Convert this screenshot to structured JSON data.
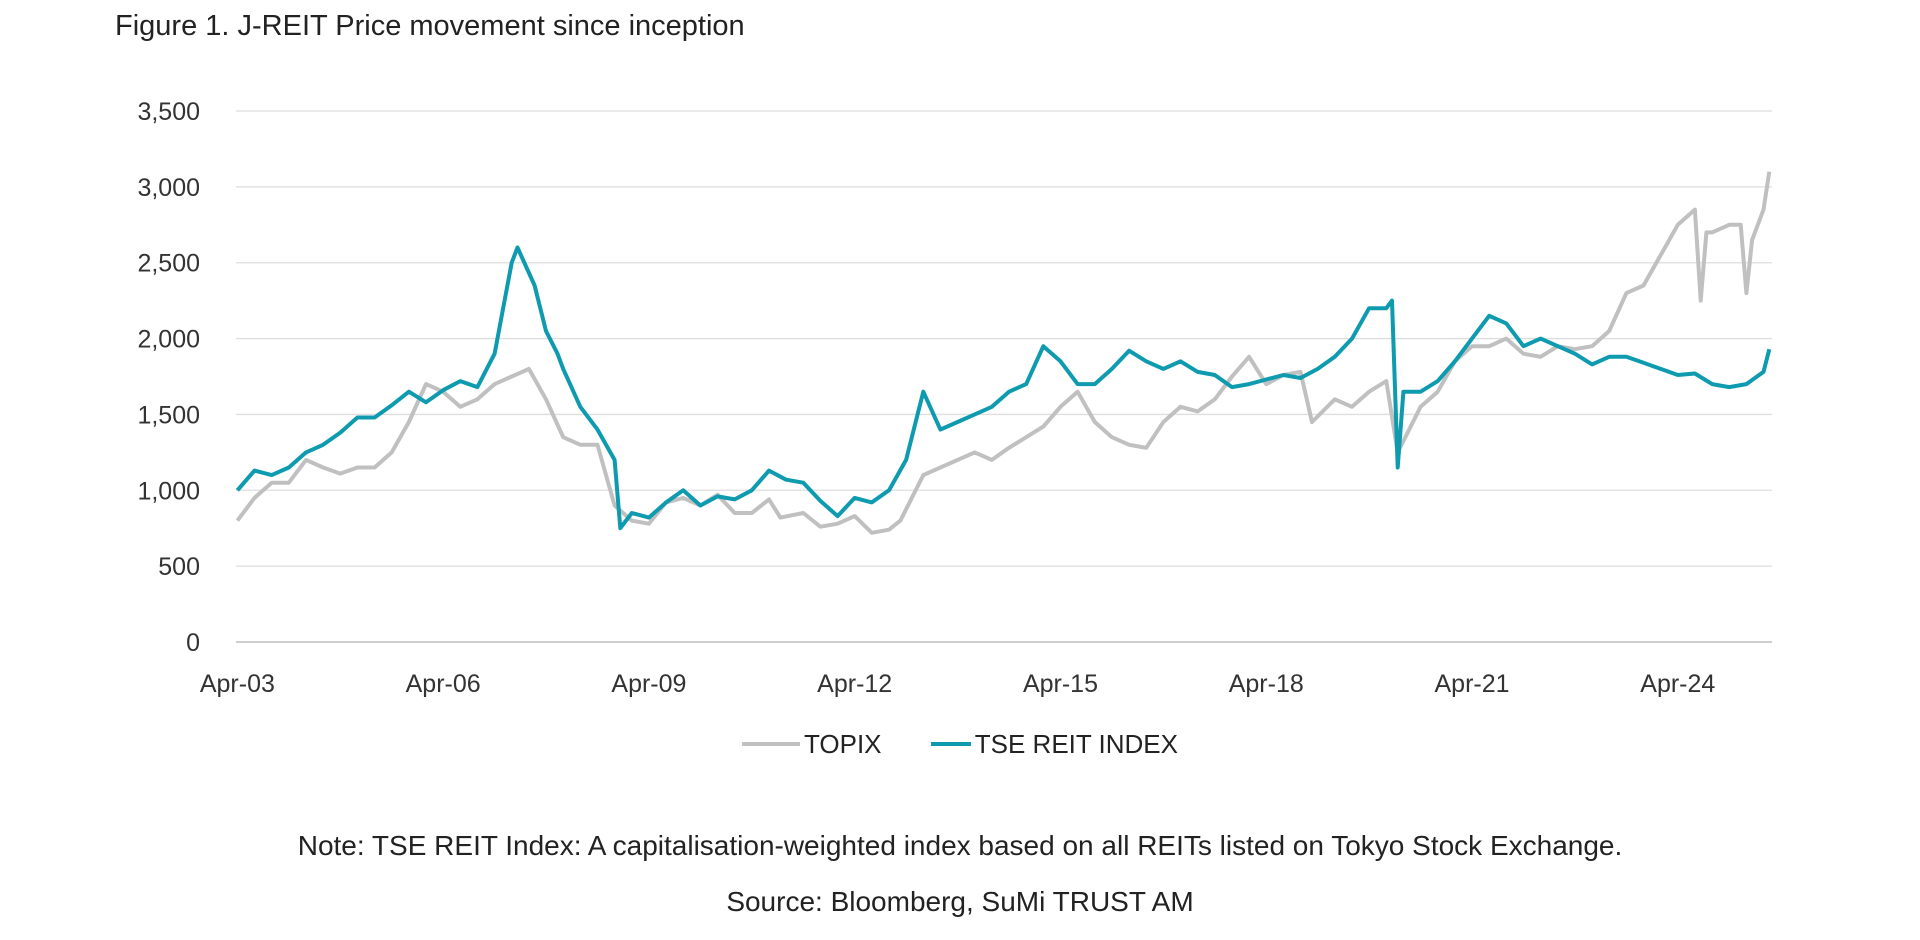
{
  "title": "Figure 1. J-REIT Price movement since inception",
  "note": "Note: TSE REIT Index: A capitalisation-weighted index based on all REITs listed on Tokyo Stock Exchange.",
  "source": "Source: Bloomberg, SuMi TRUST AM",
  "chart_data": {
    "type": "line",
    "title": "Figure 1. J-REIT Price movement since inception",
    "xlabel": "",
    "ylabel": "",
    "ylim": [
      0,
      3500
    ],
    "xlim": [
      "2003-04",
      "2025-08"
    ],
    "yticks": [
      0,
      500,
      1000,
      1500,
      2000,
      2500,
      3000,
      3500
    ],
    "ytick_labels": [
      "0",
      "500",
      "1,000",
      "1,500",
      "2,000",
      "2,500",
      "3,000",
      "3,500"
    ],
    "xticks": [
      "2003-04",
      "2006-04",
      "2009-04",
      "2012-04",
      "2015-04",
      "2018-04",
      "2021-04",
      "2024-04"
    ],
    "xtick_labels": [
      "Apr-03",
      "Apr-06",
      "Apr-09",
      "Apr-12",
      "Apr-15",
      "Apr-18",
      "Apr-21",
      "Apr-24"
    ],
    "grid": "horizontal",
    "legend": "bottom",
    "series": [
      {
        "name": "TOPIX",
        "color": "#c0c0c0",
        "points": [
          [
            "2003-04",
            800
          ],
          [
            "2003-07",
            950
          ],
          [
            "2003-10",
            1050
          ],
          [
            "2004-01",
            1050
          ],
          [
            "2004-04",
            1200
          ],
          [
            "2004-07",
            1150
          ],
          [
            "2004-10",
            1110
          ],
          [
            "2005-01",
            1150
          ],
          [
            "2005-04",
            1150
          ],
          [
            "2005-07",
            1250
          ],
          [
            "2005-10",
            1450
          ],
          [
            "2006-01",
            1700
          ],
          [
            "2006-04",
            1650
          ],
          [
            "2006-07",
            1550
          ],
          [
            "2006-10",
            1600
          ],
          [
            "2007-01",
            1700
          ],
          [
            "2007-04",
            1750
          ],
          [
            "2007-07",
            1800
          ],
          [
            "2007-10",
            1600
          ],
          [
            "2008-01",
            1350
          ],
          [
            "2008-04",
            1300
          ],
          [
            "2008-07",
            1300
          ],
          [
            "2008-10",
            900
          ],
          [
            "2009-01",
            800
          ],
          [
            "2009-04",
            780
          ],
          [
            "2009-07",
            920
          ],
          [
            "2009-10",
            950
          ],
          [
            "2010-01",
            900
          ],
          [
            "2010-04",
            970
          ],
          [
            "2010-07",
            850
          ],
          [
            "2010-10",
            850
          ],
          [
            "2011-01",
            940
          ],
          [
            "2011-03",
            820
          ],
          [
            "2011-07",
            850
          ],
          [
            "2011-10",
            760
          ],
          [
            "2012-01",
            780
          ],
          [
            "2012-04",
            830
          ],
          [
            "2012-07",
            720
          ],
          [
            "2012-10",
            740
          ],
          [
            "2012-12",
            800
          ],
          [
            "2013-04",
            1100
          ],
          [
            "2013-07",
            1150
          ],
          [
            "2013-10",
            1200
          ],
          [
            "2014-01",
            1250
          ],
          [
            "2014-04",
            1200
          ],
          [
            "2014-07",
            1280
          ],
          [
            "2014-10",
            1350
          ],
          [
            "2015-01",
            1420
          ],
          [
            "2015-04",
            1550
          ],
          [
            "2015-07",
            1650
          ],
          [
            "2015-10",
            1450
          ],
          [
            "2016-01",
            1350
          ],
          [
            "2016-04",
            1300
          ],
          [
            "2016-07",
            1280
          ],
          [
            "2016-10",
            1450
          ],
          [
            "2017-01",
            1550
          ],
          [
            "2017-04",
            1520
          ],
          [
            "2017-07",
            1600
          ],
          [
            "2017-10",
            1750
          ],
          [
            "2018-01",
            1880
          ],
          [
            "2018-04",
            1700
          ],
          [
            "2018-07",
            1760
          ],
          [
            "2018-10",
            1780
          ],
          [
            "2018-12",
            1450
          ],
          [
            "2019-04",
            1600
          ],
          [
            "2019-07",
            1550
          ],
          [
            "2019-10",
            1650
          ],
          [
            "2020-01",
            1720
          ],
          [
            "2020-03",
            1250
          ],
          [
            "2020-07",
            1550
          ],
          [
            "2020-10",
            1650
          ],
          [
            "2021-01",
            1850
          ],
          [
            "2021-04",
            1950
          ],
          [
            "2021-07",
            1950
          ],
          [
            "2021-10",
            2000
          ],
          [
            "2022-01",
            1900
          ],
          [
            "2022-04",
            1880
          ],
          [
            "2022-07",
            1950
          ],
          [
            "2022-10",
            1930
          ],
          [
            "2023-01",
            1950
          ],
          [
            "2023-04",
            2050
          ],
          [
            "2023-07",
            2300
          ],
          [
            "2023-10",
            2350
          ],
          [
            "2024-01",
            2550
          ],
          [
            "2024-04",
            2750
          ],
          [
            "2024-07",
            2850
          ],
          [
            "2024-08",
            2250
          ],
          [
            "2024-09",
            2700
          ],
          [
            "2024-10",
            2700
          ],
          [
            "2025-01",
            2750
          ],
          [
            "2025-03",
            2750
          ],
          [
            "2025-04",
            2300
          ],
          [
            "2025-05",
            2650
          ],
          [
            "2025-07",
            2850
          ],
          [
            "2025-08",
            3100
          ]
        ]
      },
      {
        "name": "TSE REIT INDEX",
        "color": "#0e9bb0",
        "points": [
          [
            "2003-04",
            1000
          ],
          [
            "2003-07",
            1130
          ],
          [
            "2003-10",
            1100
          ],
          [
            "2004-01",
            1150
          ],
          [
            "2004-04",
            1250
          ],
          [
            "2004-07",
            1300
          ],
          [
            "2004-10",
            1380
          ],
          [
            "2005-01",
            1480
          ],
          [
            "2005-04",
            1480
          ],
          [
            "2005-07",
            1560
          ],
          [
            "2005-10",
            1650
          ],
          [
            "2006-01",
            1580
          ],
          [
            "2006-04",
            1660
          ],
          [
            "2006-07",
            1720
          ],
          [
            "2006-10",
            1680
          ],
          [
            "2007-01",
            1900
          ],
          [
            "2007-04",
            2500
          ],
          [
            "2007-05",
            2600
          ],
          [
            "2007-08",
            2350
          ],
          [
            "2007-10",
            2050
          ],
          [
            "2007-12",
            1900
          ],
          [
            "2008-01",
            1800
          ],
          [
            "2008-04",
            1550
          ],
          [
            "2008-07",
            1400
          ],
          [
            "2008-10",
            1200
          ],
          [
            "2008-11",
            750
          ],
          [
            "2009-01",
            850
          ],
          [
            "2009-04",
            820
          ],
          [
            "2009-07",
            920
          ],
          [
            "2009-10",
            1000
          ],
          [
            "2010-01",
            900
          ],
          [
            "2010-04",
            960
          ],
          [
            "2010-07",
            940
          ],
          [
            "2010-10",
            1000
          ],
          [
            "2011-01",
            1130
          ],
          [
            "2011-04",
            1070
          ],
          [
            "2011-07",
            1050
          ],
          [
            "2011-10",
            930
          ],
          [
            "2012-01",
            830
          ],
          [
            "2012-04",
            950
          ],
          [
            "2012-07",
            920
          ],
          [
            "2012-10",
            1000
          ],
          [
            "2013-01",
            1200
          ],
          [
            "2013-04",
            1650
          ],
          [
            "2013-07",
            1400
          ],
          [
            "2013-10",
            1450
          ],
          [
            "2014-01",
            1500
          ],
          [
            "2014-04",
            1550
          ],
          [
            "2014-07",
            1650
          ],
          [
            "2014-10",
            1700
          ],
          [
            "2015-01",
            1950
          ],
          [
            "2015-04",
            1850
          ],
          [
            "2015-07",
            1700
          ],
          [
            "2015-10",
            1700
          ],
          [
            "2016-01",
            1800
          ],
          [
            "2016-04",
            1920
          ],
          [
            "2016-07",
            1850
          ],
          [
            "2016-10",
            1800
          ],
          [
            "2017-01",
            1850
          ],
          [
            "2017-04",
            1780
          ],
          [
            "2017-07",
            1760
          ],
          [
            "2017-10",
            1680
          ],
          [
            "2018-01",
            1700
          ],
          [
            "2018-04",
            1730
          ],
          [
            "2018-07",
            1760
          ],
          [
            "2018-10",
            1740
          ],
          [
            "2019-01",
            1800
          ],
          [
            "2019-04",
            1880
          ],
          [
            "2019-07",
            2000
          ],
          [
            "2019-10",
            2200
          ],
          [
            "2020-01",
            2200
          ],
          [
            "2020-02",
            2250
          ],
          [
            "2020-03",
            1150
          ],
          [
            "2020-04",
            1650
          ],
          [
            "2020-07",
            1650
          ],
          [
            "2020-10",
            1720
          ],
          [
            "2021-01",
            1850
          ],
          [
            "2021-04",
            2000
          ],
          [
            "2021-07",
            2150
          ],
          [
            "2021-10",
            2100
          ],
          [
            "2022-01",
            1950
          ],
          [
            "2022-04",
            2000
          ],
          [
            "2022-07",
            1950
          ],
          [
            "2022-10",
            1900
          ],
          [
            "2023-01",
            1830
          ],
          [
            "2023-04",
            1880
          ],
          [
            "2023-07",
            1880
          ],
          [
            "2023-10",
            1840
          ],
          [
            "2024-01",
            1800
          ],
          [
            "2024-04",
            1760
          ],
          [
            "2024-07",
            1770
          ],
          [
            "2024-10",
            1700
          ],
          [
            "2025-01",
            1680
          ],
          [
            "2025-04",
            1700
          ],
          [
            "2025-07",
            1780
          ],
          [
            "2025-08",
            1930
          ]
        ]
      }
    ]
  }
}
